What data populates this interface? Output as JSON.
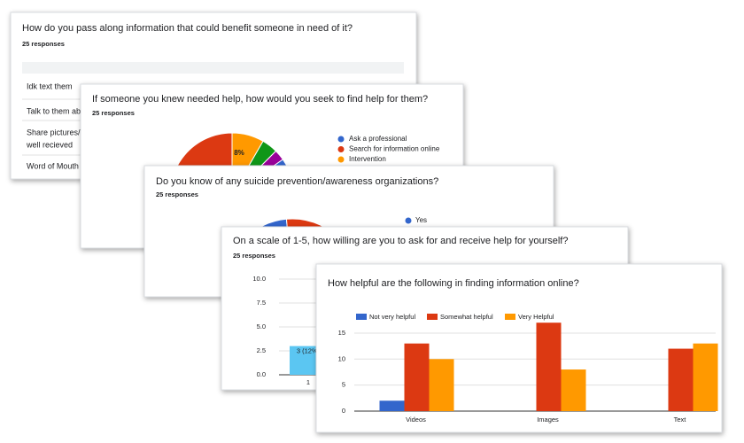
{
  "cards": [
    {
      "title": "How do you pass along information that could benefit someone in need of it?",
      "responses": "25 responses",
      "rows": [
        "Idk text them",
        "Talk to them abo",
        "Share pictures/l",
        "well recieved",
        "Word of Mouth"
      ]
    },
    {
      "title": "If someone you knew needed help, how would you seek to find help for them?",
      "responses": "25 responses",
      "legend": [
        "Ask a professional",
        "Search for information online",
        "Intervention"
      ],
      "slice_label": "8%"
    },
    {
      "title": "Do you know of any suicide prevention/awareness organizations?",
      "responses": "25 responses",
      "legend": [
        "Yes"
      ]
    },
    {
      "title": "On a scale of 1-5, how willing are you to ask for and receive help for yourself?",
      "responses": "25 responses"
    },
    {
      "title": "How helpful are the following in finding information online?"
    }
  ],
  "chart_data": [
    {
      "type": "bar",
      "categories": [
        "1"
      ],
      "values": [
        3
      ],
      "value_labels": [
        "3 (12%)"
      ],
      "color": "#5bc6f2",
      "ylim": [
        0,
        10
      ],
      "yticks": [
        {
          "value": 0,
          "label": "0.0"
        },
        2.5,
        {
          "value": 5,
          "label": "5.0"
        },
        7.5,
        {
          "value": 10,
          "label": "10.0"
        }
      ],
      "grid": true
    },
    {
      "type": "grouped_bar",
      "categories": [
        "Videos",
        "Images",
        "Text"
      ],
      "series": [
        {
          "name": "Not very helpful",
          "color": "#3366cc",
          "values": [
            2,
            0,
            0
          ]
        },
        {
          "name": "Somewhat helpful",
          "color": "#dc3912",
          "values": [
            13,
            17,
            12
          ]
        },
        {
          "name": "Very Helpful",
          "color": "#ff9900",
          "values": [
            10,
            8,
            13
          ]
        }
      ],
      "ylim": [
        0,
        17
      ],
      "yticks": [
        0,
        5,
        10,
        15
      ],
      "grid": true,
      "legend": "top"
    }
  ]
}
